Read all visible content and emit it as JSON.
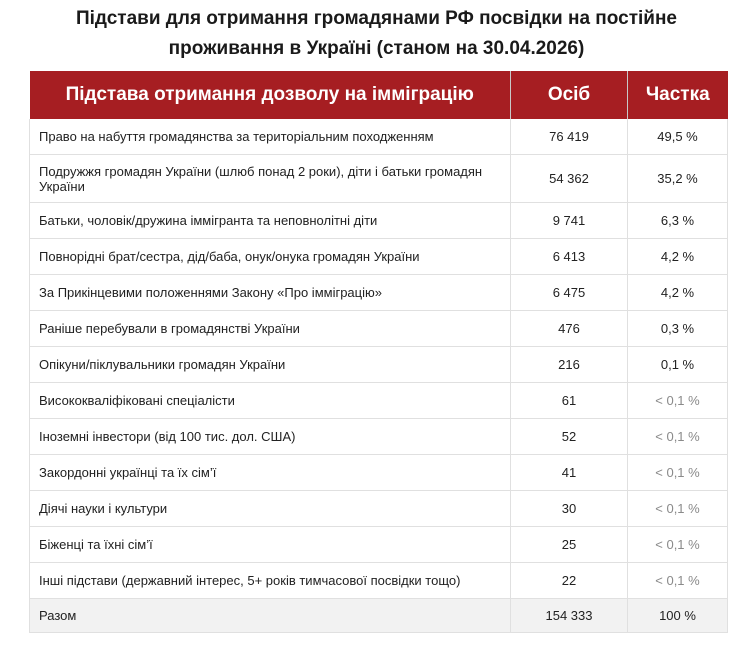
{
  "title": {
    "line1": "Підстави для отримання громадянами РФ посвідки на постійне",
    "line2": "проживання в Україні (станом на 30.04.2026)"
  },
  "table": {
    "headers": [
      "Підстава отримання дозволу на імміграцію",
      "Осіб",
      "Частка"
    ],
    "rows": [
      {
        "basis": "Право на набуття громадянства за територіальним походженням",
        "persons": "76 419",
        "share": "49,5 %"
      },
      {
        "basis": "Подружжя громадян України (шлюб понад 2 роки), діти і батьки громадян України",
        "persons": "54 362",
        "share": "35,2 %"
      },
      {
        "basis": "Батьки, чоловік/дружина іммігранта та неповнолітні діти",
        "persons": "9 741",
        "share": "6,3 %"
      },
      {
        "basis": "Повнорідні брат/сестра, дід/баба, онук/онука громадян України",
        "persons": "6 413",
        "share": "4,2 %"
      },
      {
        "basis": "За Прикінцевими положеннями Закону «Про імміграцію»",
        "persons": "6 475",
        "share": "4,2 %"
      },
      {
        "basis": "Раніше перебували в громадянстві України",
        "persons": "476",
        "share": "0,3 %"
      },
      {
        "basis": "Опікуни/піклувальники громадян України",
        "persons": "216",
        "share": "0,1 %"
      },
      {
        "basis": "Висококваліфіковані спеціалісти",
        "persons": "61",
        "share": "< 0,1 %"
      },
      {
        "basis": "Іноземні інвестори (від 100 тис. дол. США)",
        "persons": "52",
        "share": "< 0,1 %"
      },
      {
        "basis": "Закордонні українці та їх сім’ї",
        "persons": "41",
        "share": "< 0,1 %"
      },
      {
        "basis": "Діячі науки і культури",
        "persons": "30",
        "share": "< 0,1 %"
      },
      {
        "basis": "Біженці та їхні сім’ї",
        "persons": "25",
        "share": "< 0,1 %"
      },
      {
        "basis": "Інші підстави (державний інтерес, 5+ років тимчасової посвідки тощо)",
        "persons": "22",
        "share": "< 0,1 %"
      }
    ],
    "total": {
      "label": "Разом",
      "persons": "154 333",
      "share": "100 %"
    }
  },
  "colors": {
    "header_bg": "#a61e22",
    "header_text": "#ffffff",
    "muted_share": "#8a8a8a",
    "total_bg": "#f2f2f2"
  }
}
